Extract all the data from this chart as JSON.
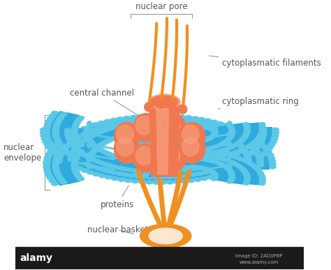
{
  "background_color": "#ffffff",
  "membrane_color": "#2eaadc",
  "membrane_dark": "#1a8ab5",
  "membrane_light": "#5bc8e8",
  "protein_color": "#f07850",
  "protein_light": "#f8a080",
  "filament_color": "#f09020",
  "filament_dark": "#d07010",
  "label_color": "#555555",
  "line_color": "#999999",
  "labels": {
    "nuclear_pore": "nuclear pore",
    "cytoplasmatic_filaments": "cytoplasmatic filaments",
    "cytoplasmatic_ring": "cytoplasmatic ring",
    "central_channel": "central channel",
    "nuclear_envelope": "nuclear\nenvelope",
    "proteins": "proteins",
    "nuclear_basket": "nuclear basket"
  },
  "figsize": [
    4.74,
    3.87
  ],
  "dpi": 100
}
